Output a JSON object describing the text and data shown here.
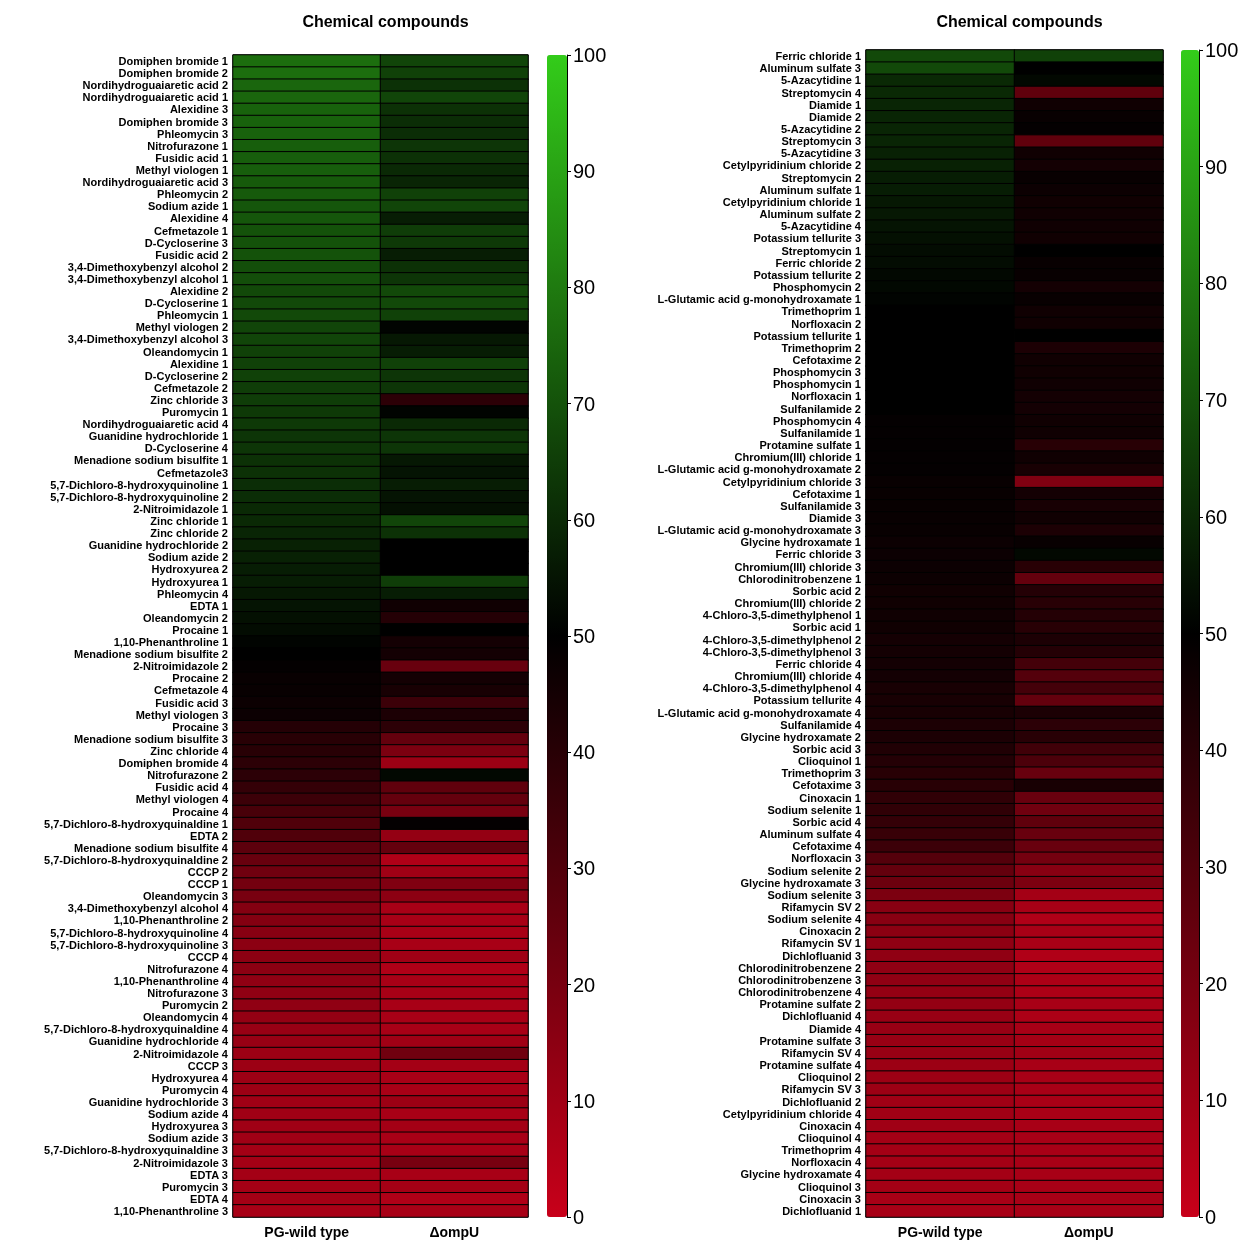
{
  "chart_data": [
    {
      "type": "heatmap",
      "title": "Chemical compounds",
      "categories": [
        "PG-wild type",
        "ΔompU"
      ],
      "y_categories": [
        "Domiphen bromide 1",
        "Domiphen bromide 2",
        "Nordihydroguaiaretic acid 2",
        "Nordihydroguaiaretic acid 1",
        "Alexidine 3",
        "Domiphen bromide 3",
        "Phleomycin 3",
        "Nitrofurazone 1",
        "Fusidic acid 1",
        "Methyl viologen 1",
        "Nordihydroguaiaretic acid 3",
        "Phleomycin 2",
        "Sodium azide 1",
        "Alexidine 4",
        "Cefmetazole 1",
        "D-Cycloserine 3",
        "Fusidic acid 2",
        "3,4-Dimethoxybenzyl alcohol 2",
        "3,4-Dimethoxybenzyl alcohol 1",
        "Alexidine 2",
        "D-Cycloserine 1",
        "Phleomycin 1",
        "Methyl viologen 2",
        "3,4-Dimethoxybenzyl alcohol 3",
        "Oleandomycin 1",
        "Alexidine 1",
        "D-Cycloserine 2",
        "Cefmetazole 2",
        "Zinc chloride 3",
        "Puromycin 1",
        "Nordihydroguaiaretic acid 4",
        "Guanidine hydrochloride 1",
        "D-Cycloserine 4",
        "Menadione sodium bisulfite 1",
        "Cefmetazole3",
        "5,7-Dichloro-8-hydroxyquinoline 1",
        "5,7-Dichloro-8-hydroxyquinoline 2",
        "2-Nitroimidazole 1",
        "Zinc chloride 1",
        "Zinc chloride 2",
        "Guanidine hydrochloride 2",
        "Sodium azide 2",
        "Hydroxyurea 2",
        "Hydroxyurea 1",
        "Phleomycin 4",
        "EDTA 1",
        "Oleandomycin 2",
        "Procaine 1",
        "1,10-Phenanthroline 1",
        "Menadione sodium bisulfite 2",
        "2-Nitroimidazole 2",
        "Procaine 2",
        "Cefmetazole 4",
        "Fusidic acid 3",
        "Methyl viologen 3",
        "Procaine 3",
        "Menadione sodium bisulfite 3",
        "Zinc chloride 4",
        "Domiphen bromide 4",
        "Nitrofurazone 2",
        "Fusidic acid 4",
        "Methyl viologen 4",
        "Procaine 4",
        "5,7-Dichloro-8-hydroxyquinaldine 1",
        "EDTA 2",
        "Menadione sodium bisulfite 4",
        "5,7-Dichloro-8-hydroxyquinaldine 2",
        "CCCP 2",
        "CCCP 1",
        "Oleandomycin 3",
        "3,4-Dimethoxybenzyl alcohol 4",
        "1,10-Phenanthroline 2",
        "5,7-Dichloro-8-hydroxyquinoline 4",
        "5,7-Dichloro-8-hydroxyquinoline 3",
        "CCCP 4",
        "Nitrofurazone 4",
        "1,10-Phenanthroline 4",
        "Nitrofurazone 3",
        "Puromycin 2",
        "Oleandomycin 4",
        "5,7-Dichloro-8-hydroxyquinaldine 4",
        "Guanidine hydrochloride 4",
        "2-Nitroimidazole 4",
        "CCCP 3",
        "Hydroxyurea 4",
        "Puromycin 4",
        "Guanidine hydrochloride 3",
        "Sodium azide 4",
        "Hydroxyurea 3",
        "Sodium azide 3",
        "5,7-Dichloro-8-hydroxyquinaldine 3",
        "2-Nitroimidazole 3",
        "EDTA 3",
        "Puromycin 3",
        "EDTA 4",
        "1,10-Phenanthroline 3"
      ],
      "cells": [
        [
          77,
          67
        ],
        [
          77,
          66
        ],
        [
          75,
          62
        ],
        [
          75,
          67
        ],
        [
          74,
          62
        ],
        [
          74,
          61
        ],
        [
          74,
          61
        ],
        [
          73,
          63
        ],
        [
          73,
          62
        ],
        [
          73,
          60
        ],
        [
          72,
          59
        ],
        [
          72,
          66
        ],
        [
          71,
          67
        ],
        [
          71,
          57
        ],
        [
          70,
          65
        ],
        [
          70,
          64
        ],
        [
          70,
          57
        ],
        [
          69,
          62
        ],
        [
          69,
          63
        ],
        [
          68,
          68
        ],
        [
          68,
          68
        ],
        [
          68,
          66
        ],
        [
          67,
          51
        ],
        [
          67,
          56
        ],
        [
          66,
          57
        ],
        [
          66,
          66
        ],
        [
          66,
          63
        ],
        [
          65,
          63
        ],
        [
          65,
          39
        ],
        [
          64,
          51
        ],
        [
          64,
          60
        ],
        [
          63,
          63
        ],
        [
          63,
          63
        ],
        [
          62,
          56
        ],
        [
          62,
          55
        ],
        [
          61,
          57
        ],
        [
          61,
          55
        ],
        [
          60,
          54
        ],
        [
          60,
          67
        ],
        [
          59,
          62
        ],
        [
          58,
          50
        ],
        [
          58,
          50
        ],
        [
          57,
          50
        ],
        [
          57,
          65
        ],
        [
          56,
          57
        ],
        [
          55,
          46
        ],
        [
          54,
          41
        ],
        [
          53,
          50
        ],
        [
          51,
          45
        ],
        [
          50,
          45
        ],
        [
          49,
          24
        ],
        [
          48,
          45
        ],
        [
          48,
          44
        ],
        [
          47,
          35
        ],
        [
          47,
          43
        ],
        [
          41,
          39
        ],
        [
          40,
          25
        ],
        [
          40,
          19
        ],
        [
          39,
          11
        ],
        [
          39,
          52
        ],
        [
          37,
          26
        ],
        [
          35,
          25
        ],
        [
          32,
          20
        ],
        [
          30,
          49
        ],
        [
          30,
          13
        ],
        [
          27,
          25
        ],
        [
          24,
          6
        ],
        [
          22,
          10
        ],
        [
          21,
          18
        ],
        [
          20,
          15
        ],
        [
          17,
          8
        ],
        [
          17,
          8
        ],
        [
          16,
          8
        ],
        [
          15,
          8
        ],
        [
          15,
          10
        ],
        [
          15,
          6
        ],
        [
          14,
          8
        ],
        [
          14,
          8
        ],
        [
          14,
          8
        ],
        [
          13,
          8
        ],
        [
          12,
          8
        ],
        [
          12,
          10
        ],
        [
          11,
          22
        ],
        [
          11,
          9
        ],
        [
          11,
          8
        ],
        [
          11,
          8
        ],
        [
          10,
          11
        ],
        [
          10,
          8
        ],
        [
          10,
          9
        ],
        [
          10,
          8
        ],
        [
          9,
          8
        ],
        [
          9,
          20
        ],
        [
          9,
          8
        ],
        [
          9,
          9
        ],
        [
          9,
          6
        ],
        [
          8,
          8
        ]
      ],
      "clim": [
        0,
        100
      ],
      "cticks": [
        0,
        10,
        20,
        30,
        40,
        50,
        60,
        70,
        80,
        90,
        100
      ]
    },
    {
      "type": "heatmap",
      "title": "Chemical compounds",
      "categories": [
        "PG-wild type",
        "ΔompU"
      ],
      "y_categories": [
        "Ferric chloride 1",
        "Aluminum sulfate 3",
        "5-Azacytidine 1",
        "Streptomycin 4",
        "Diamide 1",
        "Diamide 2",
        "5-Azacytidine 2",
        "Streptomycin 3",
        "5-Azacytidine 3",
        "Cetylpyridinium chloride 2",
        "Streptomycin 2",
        "Aluminum sulfate 1",
        "Cetylpyridinium chloride 1",
        "Aluminum sulfate 2",
        "5-Azacytidine 4",
        "Potassium tellurite 3",
        "Streptomycin 1",
        "Ferric chloride 2",
        "Potassium tellurite 2",
        "Phosphomycin 2",
        "L-Glutamic acid g-monohydroxamate 1",
        "Trimethoprim 1",
        "Norfloxacin 2",
        "Potassium tellurite 1",
        "Trimethoprim 2",
        "Cefotaxime 2",
        "Phosphomycin 3",
        "Phosphomycin 1",
        "Norfloxacin 1",
        "Sulfanilamide 2",
        "Phosphomycin 4",
        "Sulfanilamide 1",
        "Protamine sulfate 1",
        "Chromium(III) chloride 1",
        "L-Glutamic acid g-monohydroxamate 2",
        "Cetylpyridinium chloride 3",
        "Cefotaxime 1",
        "Sulfanilamide 3",
        "Diamide 3",
        "L-Glutamic acid g-monohydroxamate 3",
        "Glycine hydroxamate 1",
        "Ferric chloride 3",
        "Chromium(III) chloride 3",
        "Chlorodinitrobenzene 1",
        "Sorbic acid 2",
        "Chromium(III) chloride 2",
        "4-Chloro-3,5-dimethylphenol 1",
        "Sorbic acid 1",
        "4-Chloro-3,5-dimethylphenol 2",
        "4-Chloro-3,5-dimethylphenol 3",
        "Ferric chloride 4",
        "Chromium(III) chloride 4",
        "4-Chloro-3,5-dimethylphenol 4",
        "Potassium tellurite 4",
        "L-Glutamic acid g-monohydroxamate 4",
        "Sulfanilamide 4",
        "Glycine hydroxamate 2",
        "Sorbic acid 3",
        "Clioquinol 1",
        "Trimethoprim 3",
        "Cefotaxime 3",
        "Cinoxacin 1",
        "Sodium selenite 1",
        "Sorbic acid 4",
        "Aluminum sulfate 4",
        "Cefotaxime 4",
        "Norfloxacin 3",
        "Sodium selenite 2",
        "Glycine hydroxamate 3",
        "Sodium selenite 3",
        "Rifamycin SV 2",
        "Sodium selenite 4",
        "Cinoxacin 2",
        "Rifamycin SV 1",
        "Dichlofluanid 3",
        "Chlorodinitrobenzene 2",
        "Chlorodinitrobenzene 3",
        "Chlorodinitrobenzene 4",
        "Protamine sulfate 2",
        "Dichlofluanid 4",
        "Diamide 4",
        "Protamine sulfate 3",
        "Rifamycin SV 4",
        "Protamine sulfate 4",
        "Clioquinol 2",
        "Rifamycin SV 3",
        "Dichlofluanid 2",
        "Cetylpyridinium chloride 4",
        "Cinoxacin 4",
        "Clioquinol 4",
        "Trimethoprim 4",
        "Norfloxacin 4",
        "Glycine hydroxamate 4",
        "Clioquinol 3",
        "Cinoxacin 3",
        "Dichlofluanid 1"
      ],
      "cells": [
        [
          68,
          66
        ],
        [
          68,
          50
        ],
        [
          60,
          52
        ],
        [
          60,
          26
        ],
        [
          59,
          46
        ],
        [
          59,
          48
        ],
        [
          59,
          49
        ],
        [
          59,
          26
        ],
        [
          58,
          46
        ],
        [
          58,
          45
        ],
        [
          57,
          48
        ],
        [
          57,
          47
        ],
        [
          56,
          46
        ],
        [
          56,
          46
        ],
        [
          55,
          46
        ],
        [
          54,
          46
        ],
        [
          53,
          50
        ],
        [
          53,
          48
        ],
        [
          52,
          48
        ],
        [
          52,
          45
        ],
        [
          51,
          48
        ],
        [
          50,
          46
        ],
        [
          50,
          46
        ],
        [
          50,
          50
        ],
        [
          50,
          43
        ],
        [
          50,
          46
        ],
        [
          50,
          46
        ],
        [
          50,
          46
        ],
        [
          50,
          45
        ],
        [
          50,
          45
        ],
        [
          49,
          46
        ],
        [
          49,
          46
        ],
        [
          49,
          40
        ],
        [
          49,
          46
        ],
        [
          49,
          44
        ],
        [
          48,
          18
        ],
        [
          48,
          45
        ],
        [
          48,
          44
        ],
        [
          48,
          46
        ],
        [
          48,
          43
        ],
        [
          47,
          48
        ],
        [
          47,
          52
        ],
        [
          47,
          40
        ],
        [
          47,
          25
        ],
        [
          46,
          41
        ],
        [
          46,
          40
        ],
        [
          46,
          41
        ],
        [
          46,
          40
        ],
        [
          45,
          43
        ],
        [
          45,
          41
        ],
        [
          45,
          33
        ],
        [
          45,
          29
        ],
        [
          44,
          33
        ],
        [
          44,
          25
        ],
        [
          44,
          43
        ],
        [
          43,
          39
        ],
        [
          43,
          40
        ],
        [
          42,
          34
        ],
        [
          41,
          31
        ],
        [
          40,
          24
        ],
        [
          40,
          44
        ],
        [
          38,
          24
        ],
        [
          38,
          22
        ],
        [
          37,
          26
        ],
        [
          36,
          24
        ],
        [
          35,
          24
        ],
        [
          29,
          21
        ],
        [
          25,
          16
        ],
        [
          23,
          19
        ],
        [
          19,
          9
        ],
        [
          16,
          8
        ],
        [
          16,
          6
        ],
        [
          15,
          8
        ],
        [
          14,
          8
        ],
        [
          14,
          6
        ],
        [
          14,
          6
        ],
        [
          14,
          7
        ],
        [
          13,
          7
        ],
        [
          13,
          8
        ],
        [
          12,
          7
        ],
        [
          12,
          8
        ],
        [
          12,
          9
        ],
        [
          12,
          10
        ],
        [
          11,
          8
        ],
        [
          11,
          8
        ],
        [
          11,
          8
        ],
        [
          10,
          8
        ],
        [
          10,
          8
        ],
        [
          10,
          8
        ],
        [
          9,
          8
        ],
        [
          9,
          8
        ],
        [
          9,
          8
        ],
        [
          9,
          8
        ],
        [
          9,
          8
        ],
        [
          8,
          8
        ],
        [
          8,
          8
        ]
      ],
      "clim": [
        0,
        100
      ],
      "cticks": [
        0,
        10,
        20,
        30,
        40,
        50,
        60,
        70,
        80,
        90,
        100
      ]
    }
  ]
}
